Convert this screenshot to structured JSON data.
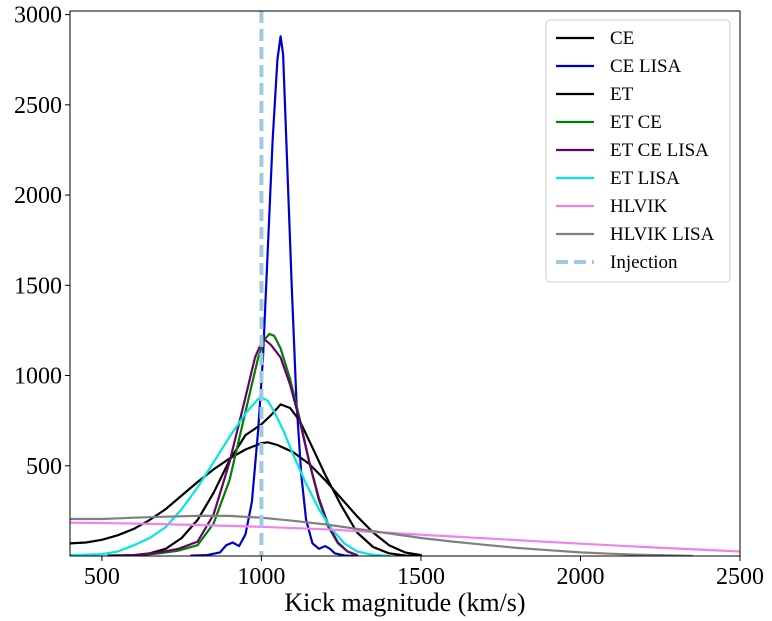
{
  "chart_data": {
    "type": "line",
    "title": "",
    "xlabel": "Kick magnitude (km/s)",
    "ylabel": "",
    "xlim": [
      400,
      2500
    ],
    "ylim": [
      0,
      3020
    ],
    "xticks": [
      500,
      1000,
      1500,
      2000,
      2500
    ],
    "yticks": [
      500,
      1000,
      1500,
      2000,
      2500,
      3000
    ],
    "grid": false,
    "legend_position": "top-right",
    "series": [
      {
        "name": "CE",
        "color": "#000000",
        "dash": "solid",
        "points": [
          [
            400,
            70
          ],
          [
            450,
            75
          ],
          [
            500,
            90
          ],
          [
            550,
            115
          ],
          [
            600,
            150
          ],
          [
            650,
            200
          ],
          [
            700,
            260
          ],
          [
            750,
            335
          ],
          [
            800,
            410
          ],
          [
            850,
            480
          ],
          [
            900,
            540
          ],
          [
            950,
            590
          ],
          [
            1000,
            625
          ],
          [
            1020,
            630
          ],
          [
            1050,
            615
          ],
          [
            1100,
            575
          ],
          [
            1150,
            510
          ],
          [
            1200,
            420
          ],
          [
            1250,
            320
          ],
          [
            1300,
            220
          ],
          [
            1350,
            130
          ],
          [
            1400,
            60
          ],
          [
            1450,
            20
          ],
          [
            1500,
            5
          ]
        ]
      },
      {
        "name": "CE LISA",
        "color": "#0000cc",
        "dash": "solid",
        "points": [
          [
            780,
            2
          ],
          [
            830,
            5
          ],
          [
            870,
            20
          ],
          [
            890,
            60
          ],
          [
            910,
            75
          ],
          [
            930,
            55
          ],
          [
            950,
            120
          ],
          [
            970,
            300
          ],
          [
            990,
            700
          ],
          [
            1005,
            1100
          ],
          [
            1020,
            1700
          ],
          [
            1035,
            2300
          ],
          [
            1050,
            2750
          ],
          [
            1060,
            2880
          ],
          [
            1068,
            2780
          ],
          [
            1080,
            2200
          ],
          [
            1095,
            1500
          ],
          [
            1110,
            850
          ],
          [
            1125,
            450
          ],
          [
            1140,
            200
          ],
          [
            1160,
            70
          ],
          [
            1180,
            40
          ],
          [
            1200,
            55
          ],
          [
            1215,
            40
          ],
          [
            1230,
            15
          ],
          [
            1260,
            3
          ],
          [
            1290,
            0
          ]
        ]
      },
      {
        "name": "ET",
        "color": "#000000",
        "dash": "solid",
        "points": [
          [
            520,
            2
          ],
          [
            600,
            5
          ],
          [
            650,
            15
          ],
          [
            700,
            40
          ],
          [
            750,
            100
          ],
          [
            800,
            200
          ],
          [
            850,
            350
          ],
          [
            900,
            530
          ],
          [
            950,
            670
          ],
          [
            1000,
            730
          ],
          [
            1030,
            780
          ],
          [
            1060,
            840
          ],
          [
            1090,
            820
          ],
          [
            1120,
            750
          ],
          [
            1160,
            600
          ],
          [
            1200,
            450
          ],
          [
            1250,
            280
          ],
          [
            1300,
            130
          ],
          [
            1350,
            50
          ],
          [
            1400,
            15
          ],
          [
            1450,
            3
          ],
          [
            1500,
            0
          ]
        ]
      },
      {
        "name": "ET CE",
        "color": "#008000",
        "dash": "solid",
        "points": [
          [
            560,
            2
          ],
          [
            620,
            5
          ],
          [
            680,
            15
          ],
          [
            740,
            30
          ],
          [
            800,
            60
          ],
          [
            850,
            180
          ],
          [
            900,
            420
          ],
          [
            950,
            800
          ],
          [
            990,
            1100
          ],
          [
            1010,
            1200
          ],
          [
            1025,
            1230
          ],
          [
            1040,
            1220
          ],
          [
            1060,
            1150
          ],
          [
            1090,
            980
          ],
          [
            1120,
            760
          ],
          [
            1150,
            520
          ],
          [
            1180,
            310
          ],
          [
            1210,
            160
          ],
          [
            1240,
            70
          ],
          [
            1270,
            25
          ],
          [
            1300,
            5
          ]
        ]
      },
      {
        "name": "ET CE LISA",
        "color": "#6a006a",
        "dash": "solid",
        "points": [
          [
            560,
            2
          ],
          [
            620,
            6
          ],
          [
            680,
            20
          ],
          [
            740,
            40
          ],
          [
            800,
            80
          ],
          [
            850,
            230
          ],
          [
            900,
            520
          ],
          [
            950,
            880
          ],
          [
            980,
            1100
          ],
          [
            1000,
            1180
          ],
          [
            1010,
            1200
          ],
          [
            1030,
            1170
          ],
          [
            1060,
            1100
          ],
          [
            1090,
            950
          ],
          [
            1120,
            750
          ],
          [
            1150,
            520
          ],
          [
            1180,
            320
          ],
          [
            1210,
            170
          ],
          [
            1240,
            75
          ],
          [
            1270,
            25
          ],
          [
            1300,
            5
          ]
        ]
      },
      {
        "name": "ET LISA",
        "color": "#00e5e5",
        "dash": "solid",
        "points": [
          [
            400,
            5
          ],
          [
            500,
            10
          ],
          [
            550,
            25
          ],
          [
            600,
            60
          ],
          [
            650,
            100
          ],
          [
            700,
            160
          ],
          [
            750,
            260
          ],
          [
            800,
            380
          ],
          [
            850,
            520
          ],
          [
            900,
            660
          ],
          [
            950,
            790
          ],
          [
            990,
            870
          ],
          [
            1000,
            880
          ],
          [
            1020,
            860
          ],
          [
            1040,
            800
          ],
          [
            1070,
            690
          ],
          [
            1100,
            560
          ],
          [
            1140,
            400
          ],
          [
            1180,
            260
          ],
          [
            1220,
            150
          ],
          [
            1260,
            70
          ],
          [
            1300,
            25
          ],
          [
            1350,
            6
          ],
          [
            1400,
            0
          ]
        ]
      },
      {
        "name": "HLVIK",
        "color": "#ee82ee",
        "dash": "solid",
        "points": [
          [
            400,
            185
          ],
          [
            600,
            180
          ],
          [
            800,
            172
          ],
          [
            1000,
            162
          ],
          [
            1200,
            148
          ],
          [
            1400,
            128
          ],
          [
            1600,
            108
          ],
          [
            1800,
            88
          ],
          [
            2000,
            68
          ],
          [
            2200,
            50
          ],
          [
            2400,
            33
          ],
          [
            2500,
            25
          ]
        ]
      },
      {
        "name": "HLVIK LISA",
        "color": "#808080",
        "dash": "solid",
        "points": [
          [
            400,
            205
          ],
          [
            500,
            205
          ],
          [
            600,
            212
          ],
          [
            700,
            218
          ],
          [
            800,
            222
          ],
          [
            900,
            222
          ],
          [
            1000,
            212
          ],
          [
            1100,
            195
          ],
          [
            1200,
            175
          ],
          [
            1300,
            150
          ],
          [
            1400,
            125
          ],
          [
            1500,
            100
          ],
          [
            1600,
            80
          ],
          [
            1700,
            62
          ],
          [
            1800,
            45
          ],
          [
            1900,
            32
          ],
          [
            2000,
            20
          ],
          [
            2100,
            12
          ],
          [
            2200,
            6
          ],
          [
            2300,
            3
          ],
          [
            2350,
            0
          ]
        ]
      },
      {
        "name": "Injection",
        "color": "#9ecae1",
        "dash": "dashed",
        "vertical_x": 1000
      }
    ]
  }
}
